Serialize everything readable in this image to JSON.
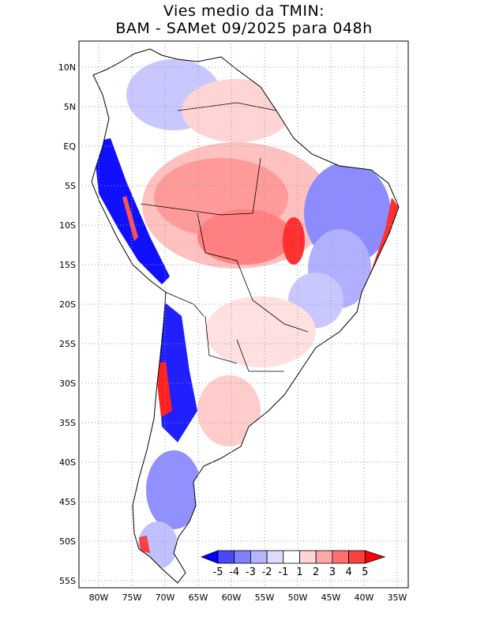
{
  "title": {
    "line1": "Vies medio da TMIN:",
    "line2": "BAM - SAMet 09/2025  para 048h"
  },
  "axes": {
    "y_ticks": [
      "10N",
      "5N",
      "EQ",
      "5S",
      "10S",
      "15S",
      "20S",
      "25S",
      "30S",
      "35S",
      "40S",
      "45S",
      "50S",
      "55S"
    ],
    "x_ticks": [
      "80W",
      "75W",
      "70W",
      "65W",
      "60W",
      "55W",
      "50W",
      "45W",
      "40W",
      "35W"
    ]
  },
  "colorbar": {
    "labels": [
      "-5",
      "-4",
      "-3",
      "-2",
      "-1",
      "1",
      "2",
      "3",
      "4",
      "5"
    ],
    "colors": [
      "#0000ff",
      "#4848ff",
      "#8080ff",
      "#b4b4ff",
      "#dcdcff",
      "#ffffff",
      "#ffd4d4",
      "#ffaaaa",
      "#ff7070",
      "#ff4040",
      "#ff0000"
    ]
  },
  "legend_colors": {
    "strong_negative": "#0000ff",
    "negative": "#8080ff",
    "weak_negative": "#d0d0ff",
    "weak_positive": "#ffd4d4",
    "positive": "#ff9090",
    "strong_positive": "#ff0000"
  }
}
